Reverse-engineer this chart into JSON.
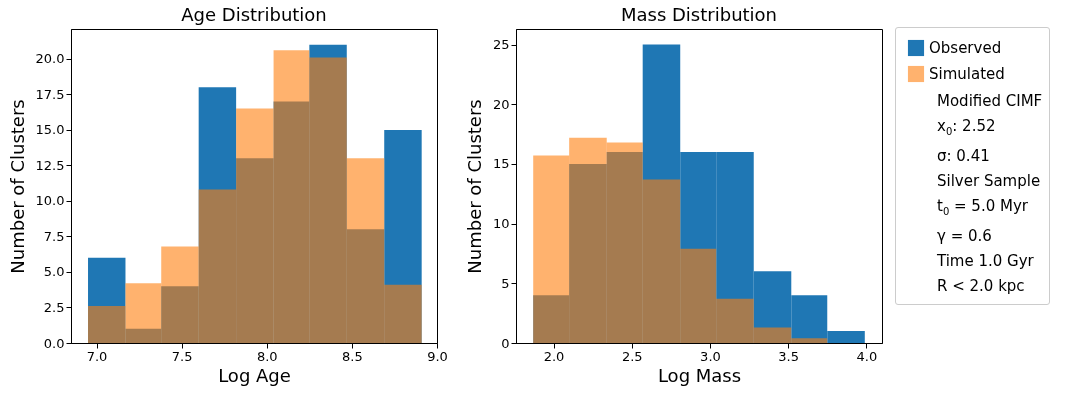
{
  "chart_data": [
    {
      "type": "histogram",
      "title": "Age Distribution",
      "xlabel": "Log Age",
      "ylabel": "Number of Clusters",
      "bins": [
        6.95,
        7.17,
        7.38,
        7.6,
        7.82,
        8.04,
        8.25,
        8.47,
        8.69,
        8.91
      ],
      "series": [
        {
          "color": "#1f77b4",
          "values": [
            6,
            1,
            4,
            18,
            13,
            17,
            21,
            8,
            15
          ]
        },
        {
          "color": "#ff7f0e",
          "values": [
            2.6,
            4.2,
            6.8,
            10.8,
            16.5,
            20.6,
            20.1,
            13,
            4.1
          ]
        }
      ],
      "xlim": [
        6.85,
        9.0
      ],
      "xticks": [
        {
          "value": 7,
          "label": "7.0"
        },
        {
          "value": 7.5,
          "label": "7.5"
        },
        {
          "value": 8,
          "label": "8.0"
        },
        {
          "value": 8.5,
          "label": "8.5"
        },
        {
          "value": 9,
          "label": "9.0"
        }
      ],
      "ylim": [
        0,
        22.1
      ],
      "yticks": [
        {
          "value": 0,
          "label": "0.0"
        },
        2.5,
        {
          "value": 5,
          "label": "5.0"
        },
        7.5,
        {
          "value": 10,
          "label": "10.0"
        },
        12.5,
        {
          "value": 15,
          "label": "15.0"
        },
        17.5,
        {
          "value": 20,
          "label": "20.0"
        }
      ],
      "grid": false
    },
    {
      "type": "histogram",
      "title": "Mass Distribution",
      "xlabel": "Log Mass",
      "ylabel": "Number of Clusters",
      "bins": [
        1.87,
        2.1,
        2.34,
        2.57,
        2.81,
        3.04,
        3.28,
        3.52,
        3.75,
        3.99
      ],
      "series": [
        {
          "name": "Observed",
          "color": "#1f77b4",
          "values": [
            4,
            15,
            16,
            25,
            16,
            16,
            6,
            4,
            1
          ]
        },
        {
          "name": "Simulated",
          "color": "#ff7f0e",
          "values": [
            15.7,
            17.2,
            16.8,
            13.7,
            7.9,
            3.7,
            1.3,
            0.4,
            0
          ]
        }
      ],
      "xlim": [
        1.76,
        4.1
      ],
      "xticks": [
        {
          "value": 2,
          "label": "2.0"
        },
        {
          "value": 2.5,
          "label": "2.5"
        },
        {
          "value": 3,
          "label": "3.0"
        },
        {
          "value": 3.5,
          "label": "3.5"
        },
        {
          "value": 4,
          "label": "4.0"
        }
      ],
      "ylim": [
        0,
        26.3
      ],
      "yticks": [
        0,
        5,
        10,
        15,
        20,
        25
      ],
      "grid": false,
      "legend": "right",
      "annotations": [
        "Modified CIMF",
        "x$_{0}$: 2.52",
        "σ: 0.41",
        "Silver Sample",
        "t$_{0}$ = 5.0 Myr",
        "γ = 0.6",
        "Time 1.0 Gyr",
        "R < 2.0 kpc"
      ]
    }
  ]
}
